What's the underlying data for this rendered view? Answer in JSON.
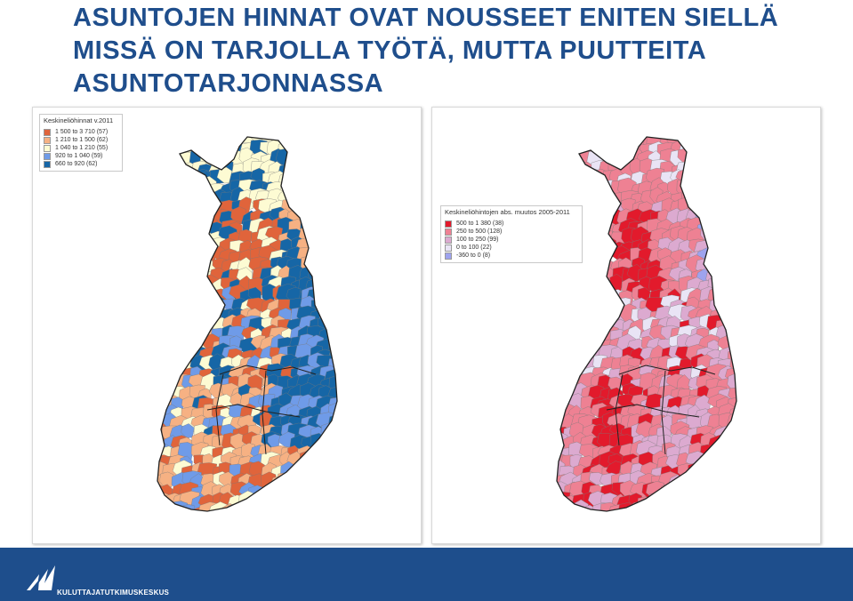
{
  "title": {
    "line1": "ASUNTOJEN HINNAT OVAT NOUSSEET ENITEN SIELLÄ",
    "line2": "MISSÄ ON TARJOLLA TYÖTÄ, MUTTA PUUTTEITA",
    "line3": "ASUNTOTARJONNASSA"
  },
  "map_left": {
    "legend_title": "Keskineliöhinnat v.2011",
    "legend": [
      {
        "label": "1 500 to 3 710  (57)",
        "color": "#e0643b"
      },
      {
        "label": "1 210 to 1 500  (62)",
        "color": "#f6b183"
      },
      {
        "label": "1 040 to 1 210  (55)",
        "color": "#fdfbd3"
      },
      {
        "label": "920 to 1 040  (59)",
        "color": "#6f9be8"
      },
      {
        "label": "660 to   920  (62)",
        "color": "#1666a6"
      }
    ]
  },
  "map_right": {
    "legend_title": "Keskineliöhintojen abs. muutos 2005-2011",
    "legend": [
      {
        "label": "500 to 1 380   (38)",
        "color": "#e21a2c"
      },
      {
        "label": "250 to   500  (128)",
        "color": "#ee8193"
      },
      {
        "label": "100 to   250   (99)",
        "color": "#dcaad0"
      },
      {
        "label": "0 to   100   (22)",
        "color": "#e9e4f5"
      },
      {
        "label": "-360 to     0    (8)",
        "color": "#9ea3ee"
      }
    ]
  },
  "footer": {
    "org": "KULUTTAJATUTKIMUSKESKUS",
    "bg_color": "#1e4e8c"
  }
}
